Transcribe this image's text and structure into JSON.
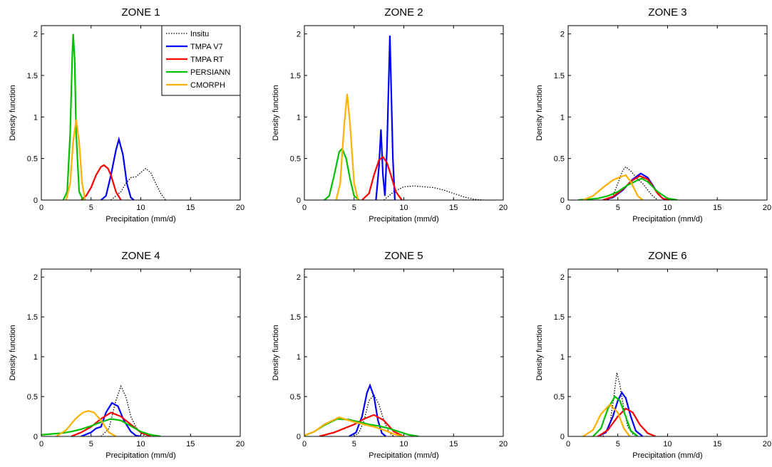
{
  "chart_data": [
    {
      "type": "line",
      "title": "ZONE 1",
      "xlabel": "Precipitation (mm/d)",
      "ylabel": "Density function",
      "xlim": [
        0,
        20
      ],
      "ylim": [
        0,
        2.1
      ],
      "xticks": [
        0,
        5,
        10,
        15,
        20
      ],
      "yticks": [
        0,
        0.5,
        1,
        1.5,
        2
      ],
      "legend": "upper right",
      "series": [
        {
          "name": "Insitu",
          "color": "#000000",
          "linestyle": "dotted",
          "x": [
            7,
            8,
            8.5,
            9,
            9.5,
            10,
            10.5,
            11,
            11.5,
            12,
            12.5
          ],
          "values": [
            0,
            0.1,
            0.2,
            0.27,
            0.28,
            0.33,
            0.38,
            0.33,
            0.2,
            0.08,
            0
          ]
        },
        {
          "name": "TMPA V7",
          "color": "#0000ff",
          "x": [
            6,
            6.5,
            7,
            7.5,
            7.8,
            8.2,
            8.6,
            9,
            9.3
          ],
          "values": [
            0,
            0.05,
            0.3,
            0.6,
            0.73,
            0.55,
            0.2,
            0.03,
            0
          ]
        },
        {
          "name": "TMPA RT",
          "color": "#ff0000",
          "x": [
            4,
            4.5,
            5,
            5.5,
            6,
            6.3,
            6.7,
            7,
            7.5,
            8
          ],
          "values": [
            0,
            0.05,
            0.15,
            0.3,
            0.4,
            0.42,
            0.38,
            0.3,
            0.1,
            0
          ]
        },
        {
          "name": "PERSIANN",
          "color": "#00c000",
          "x": [
            2.2,
            2.6,
            2.9,
            3.1,
            3.2,
            3.35,
            3.5,
            3.8,
            4.2
          ],
          "values": [
            0,
            0.1,
            0.8,
            1.7,
            2.0,
            1.7,
            0.8,
            0.1,
            0
          ]
        },
        {
          "name": "CMORPH",
          "color": "#ffb000",
          "x": [
            2.5,
            2.9,
            3.2,
            3.5,
            3.8,
            4.1,
            4.4
          ],
          "values": [
            0,
            0.2,
            0.7,
            0.97,
            0.7,
            0.2,
            0
          ]
        }
      ]
    },
    {
      "type": "line",
      "title": "ZONE 2",
      "xlabel": "Precipitation (mm/d)",
      "ylabel": "Density function",
      "xlim": [
        0,
        20
      ],
      "ylim": [
        0,
        2.1
      ],
      "xticks": [
        0,
        5,
        10,
        15,
        20
      ],
      "yticks": [
        0,
        0.5,
        1,
        1.5,
        2
      ],
      "series": [
        {
          "color": "#000000",
          "linestyle": "dotted",
          "x": [
            8,
            9,
            10,
            11,
            12,
            13,
            14,
            15,
            16,
            17,
            18
          ],
          "values": [
            0,
            0.1,
            0.16,
            0.17,
            0.16,
            0.15,
            0.12,
            0.08,
            0.04,
            0.01,
            0
          ]
        },
        {
          "color": "#0000ff",
          "x": [
            7.2,
            7.5,
            7.7,
            7.9,
            8.1,
            8.3,
            8.6,
            8.9,
            9.1
          ],
          "values": [
            0,
            0.4,
            0.85,
            0.3,
            0.05,
            0.6,
            1.98,
            0.5,
            0
          ]
        },
        {
          "color": "#ff0000",
          "x": [
            5.8,
            6.5,
            7,
            7.5,
            7.9,
            8.3,
            8.7,
            9.2,
            9.8
          ],
          "values": [
            0,
            0.08,
            0.3,
            0.48,
            0.52,
            0.45,
            0.3,
            0.1,
            0
          ]
        },
        {
          "color": "#00c000",
          "x": [
            2,
            2.5,
            3,
            3.5,
            3.8,
            4.2,
            4.6,
            5,
            5.5
          ],
          "values": [
            0,
            0.05,
            0.3,
            0.58,
            0.62,
            0.5,
            0.25,
            0.05,
            0
          ]
        },
        {
          "color": "#ffb000",
          "x": [
            3.2,
            3.6,
            4,
            4.3,
            4.6,
            5,
            5.4
          ],
          "values": [
            0,
            0.2,
            0.9,
            1.28,
            0.9,
            0.2,
            0
          ]
        }
      ]
    },
    {
      "type": "line",
      "title": "ZONE 3",
      "xlabel": "Precipitation (mm/d)",
      "ylabel": "Density function",
      "xlim": [
        0,
        20
      ],
      "ylim": [
        0,
        2.1
      ],
      "xticks": [
        0,
        5,
        10,
        15,
        20
      ],
      "yticks": [
        0,
        0.5,
        1,
        1.5,
        2
      ],
      "series": [
        {
          "color": "#000000",
          "linestyle": "dotted",
          "x": [
            4,
            4.5,
            5,
            5.5,
            5.8,
            6.3,
            7,
            7.5,
            8,
            8.5,
            9
          ],
          "values": [
            0,
            0.05,
            0.2,
            0.36,
            0.4,
            0.35,
            0.25,
            0.2,
            0.12,
            0.05,
            0
          ]
        },
        {
          "color": "#0000ff",
          "x": [
            3.5,
            4.5,
            5.5,
            6.5,
            7.3,
            8,
            8.5,
            9,
            9.5,
            10
          ],
          "values": [
            0,
            0.03,
            0.12,
            0.25,
            0.32,
            0.27,
            0.18,
            0.08,
            0.02,
            0
          ]
        },
        {
          "color": "#ff0000",
          "x": [
            3.5,
            4.5,
            5.5,
            6.5,
            7.2,
            8,
            8.5,
            9,
            9.5,
            10.2
          ],
          "values": [
            0,
            0.04,
            0.13,
            0.24,
            0.29,
            0.25,
            0.17,
            0.08,
            0.02,
            0
          ]
        },
        {
          "color": "#00c000",
          "x": [
            1,
            2,
            3,
            4,
            5,
            6,
            7,
            7.4,
            8,
            9,
            10,
            11
          ],
          "values": [
            0,
            0.01,
            0.02,
            0.05,
            0.1,
            0.18,
            0.24,
            0.26,
            0.22,
            0.1,
            0.02,
            0
          ]
        },
        {
          "color": "#ffb000",
          "x": [
            1.5,
            2.5,
            3.5,
            4.5,
            5.3,
            5.8,
            6.3,
            7,
            7.5
          ],
          "values": [
            0,
            0.05,
            0.15,
            0.24,
            0.28,
            0.3,
            0.22,
            0.05,
            0
          ]
        }
      ]
    },
    {
      "type": "line",
      "title": "ZONE 4",
      "xlabel": "Precipitation (mm/d)",
      "ylabel": "Density function",
      "xlim": [
        0,
        20
      ],
      "ylim": [
        0,
        2.1
      ],
      "xticks": [
        0,
        5,
        10,
        15,
        20
      ],
      "yticks": [
        0,
        0.5,
        1,
        1.5,
        2
      ],
      "series": [
        {
          "color": "#000000",
          "linestyle": "dotted",
          "x": [
            6,
            6.8,
            7.5,
            8,
            8.5,
            9,
            9.5,
            10,
            10.5
          ],
          "values": [
            0,
            0.1,
            0.45,
            0.63,
            0.5,
            0.25,
            0.12,
            0.04,
            0
          ]
        },
        {
          "color": "#0000ff",
          "x": [
            4,
            5,
            5.5,
            6,
            6.5,
            7.1,
            7.7,
            8.3,
            9,
            9.5,
            10
          ],
          "values": [
            0,
            0.05,
            0.1,
            0.12,
            0.3,
            0.42,
            0.38,
            0.2,
            0.06,
            0.01,
            0
          ]
        },
        {
          "color": "#ff0000",
          "x": [
            3,
            4,
            5,
            6,
            7,
            8,
            9,
            10,
            11
          ],
          "values": [
            0,
            0.05,
            0.12,
            0.22,
            0.3,
            0.25,
            0.15,
            0.05,
            0
          ]
        },
        {
          "color": "#00c000",
          "x": [
            0,
            1,
            2,
            3,
            4,
            5,
            6,
            7,
            8,
            9,
            10,
            11,
            12
          ],
          "values": [
            0.02,
            0.03,
            0.04,
            0.06,
            0.09,
            0.13,
            0.18,
            0.22,
            0.2,
            0.13,
            0.06,
            0.02,
            0
          ]
        },
        {
          "color": "#ffb000",
          "x": [
            1.5,
            2.5,
            3.5,
            4.2,
            4.7,
            5.3,
            6,
            6.8,
            7.5
          ],
          "values": [
            0,
            0.08,
            0.23,
            0.3,
            0.32,
            0.3,
            0.2,
            0.05,
            0
          ]
        }
      ]
    },
    {
      "type": "line",
      "title": "ZONE 5",
      "xlabel": "Precipitation (mm/d)",
      "ylabel": "Density function",
      "xlim": [
        0,
        20
      ],
      "ylim": [
        0,
        2.1
      ],
      "xticks": [
        0,
        5,
        10,
        15,
        20
      ],
      "yticks": [
        0,
        0.5,
        1,
        1.5,
        2
      ],
      "series": [
        {
          "color": "#000000",
          "linestyle": "dotted",
          "x": [
            5,
            5.5,
            6,
            6.5,
            7,
            7.5,
            8,
            8.5,
            9
          ],
          "values": [
            0,
            0.05,
            0.2,
            0.45,
            0.52,
            0.4,
            0.2,
            0.05,
            0
          ]
        },
        {
          "color": "#0000ff",
          "x": [
            4.5,
            5.2,
            5.8,
            6.3,
            6.6,
            7,
            7.4,
            7.8,
            8.2
          ],
          "values": [
            0,
            0.05,
            0.25,
            0.55,
            0.64,
            0.5,
            0.2,
            0.04,
            0
          ]
        },
        {
          "color": "#ff0000",
          "x": [
            1.5,
            3,
            4,
            5,
            6,
            7,
            8,
            9,
            10
          ],
          "values": [
            0,
            0.05,
            0.1,
            0.15,
            0.22,
            0.27,
            0.2,
            0.06,
            0
          ]
        },
        {
          "color": "#00c000",
          "x": [
            0,
            1,
            2,
            3.3,
            4.5,
            5.5,
            6.5,
            7.5,
            8.5,
            9.5,
            10.5,
            11.5
          ],
          "values": [
            0.01,
            0.06,
            0.14,
            0.22,
            0.21,
            0.18,
            0.15,
            0.13,
            0.1,
            0.06,
            0.02,
            0
          ]
        },
        {
          "color": "#ffb000",
          "x": [
            0,
            1,
            2,
            3.5,
            5,
            6,
            7,
            8,
            9,
            10
          ],
          "values": [
            0.01,
            0.06,
            0.15,
            0.24,
            0.18,
            0.15,
            0.12,
            0.08,
            0.03,
            0
          ]
        }
      ]
    },
    {
      "type": "line",
      "title": "ZONE 6",
      "xlabel": "Precipitation (mm/d)",
      "ylabel": "Density function",
      "xlim": [
        0,
        20
      ],
      "ylim": [
        0,
        2.1
      ],
      "xticks": [
        0,
        5,
        10,
        15,
        20
      ],
      "yticks": [
        0,
        0.5,
        1,
        1.5,
        2
      ],
      "series": [
        {
          "color": "#000000",
          "linestyle": "dotted",
          "x": [
            3.5,
            4.2,
            4.6,
            4.9,
            5.2,
            5.6,
            6,
            6.5,
            7
          ],
          "values": [
            0,
            0.15,
            0.5,
            0.8,
            0.65,
            0.35,
            0.12,
            0.03,
            0
          ]
        },
        {
          "color": "#0000ff",
          "x": [
            3,
            3.8,
            4.5,
            5,
            5.4,
            5.8,
            6.3,
            6.8,
            7.5
          ],
          "values": [
            0,
            0.05,
            0.25,
            0.45,
            0.55,
            0.48,
            0.25,
            0.07,
            0
          ]
        },
        {
          "color": "#ff0000",
          "x": [
            3,
            4,
            5,
            5.8,
            6.5,
            7.2,
            8,
            8.8
          ],
          "values": [
            0,
            0.08,
            0.25,
            0.35,
            0.3,
            0.15,
            0.04,
            0
          ]
        },
        {
          "color": "#00c000",
          "x": [
            2.5,
            3.3,
            4,
            4.7,
            5.2,
            5.7,
            6.3,
            7
          ],
          "values": [
            0,
            0.1,
            0.35,
            0.5,
            0.45,
            0.28,
            0.07,
            0
          ]
        },
        {
          "color": "#ffb000",
          "x": [
            1.5,
            2.5,
            3.3,
            4.2,
            5,
            5.6,
            6.2
          ],
          "values": [
            0,
            0.08,
            0.28,
            0.4,
            0.3,
            0.1,
            0
          ]
        }
      ]
    }
  ]
}
